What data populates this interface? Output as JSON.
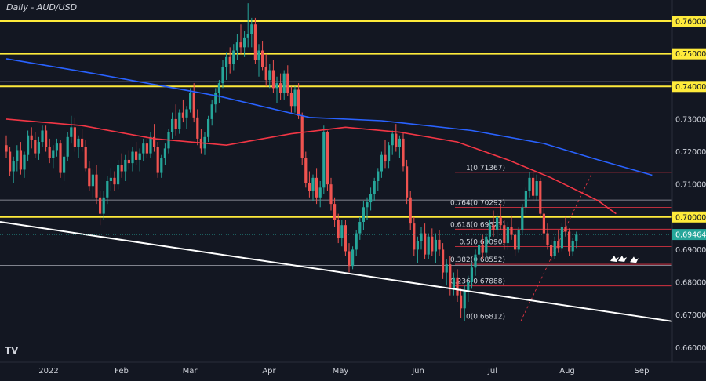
{
  "chart_data": {
    "type": "candlestick",
    "title": "Daily - AUD/USD",
    "xlabel": "",
    "ylabel": "",
    "ylim": [
      0.6555,
      0.7665
    ],
    "x_tick_labels": [
      "2022",
      "Feb",
      "Mar",
      "Apr",
      "May",
      "Jun",
      "Jul",
      "Aug",
      "Sep"
    ],
    "y_ticks": [
      0.66,
      0.67,
      0.68,
      0.69,
      0.7,
      0.71,
      0.72,
      0.73,
      0.74,
      0.75,
      0.76
    ],
    "y_tick_labels": [
      "0.66000",
      "0.67000",
      "0.68000",
      "0.69000",
      "0.70000",
      "0.71000",
      "0.72000",
      "0.73000",
      "0.74000",
      "0.75000",
      "0.76000"
    ],
    "grid": false,
    "last_price": 0.69464,
    "last_price_label": "0.69464",
    "yellow_levels": [
      0.76,
      0.75,
      0.74,
      0.7
    ],
    "yellow_level_labels": [
      "0.76000",
      "0.75000",
      "0.74000",
      "0.70000"
    ],
    "fibonacci": [
      {
        "label": "1(0.71367)",
        "value": 0.71367
      },
      {
        "label": "0.764(0.70292)",
        "value": 0.70292
      },
      {
        "label": "0.618(0.69627)",
        "value": 0.69627
      },
      {
        "label": "0.5(0.69090)",
        "value": 0.6909
      },
      {
        "label": "0.382(0.68552)",
        "value": 0.68552
      },
      {
        "label": "0.236(0.67888)",
        "value": 0.67888
      },
      {
        "label": "0(0.66812)",
        "value": 0.66812
      }
    ],
    "moving_averages": [
      {
        "name": "",
        "color": "#2962ff",
        "points": [
          [
            1,
            0.7485
          ],
          [
            25,
            0.744
          ],
          [
            60,
            0.737
          ],
          [
            85,
            0.7305
          ],
          [
            105,
            0.7295
          ],
          [
            130,
            0.7265
          ],
          [
            150,
            0.7225
          ],
          [
            165,
            0.7175
          ],
          [
            180,
            0.7128
          ]
        ]
      },
      {
        "name": "",
        "color": "#f23645",
        "points": [
          [
            1,
            0.73
          ],
          [
            22,
            0.728
          ],
          [
            42,
            0.724
          ],
          [
            62,
            0.722
          ],
          [
            80,
            0.7255
          ],
          [
            95,
            0.7275
          ],
          [
            110,
            0.726
          ],
          [
            126,
            0.723
          ],
          [
            140,
            0.7175
          ],
          [
            152,
            0.712
          ],
          [
            165,
            0.705
          ],
          [
            170,
            0.701
          ]
        ]
      }
    ],
    "trendline": {
      "color": "#ffffff",
      "start": [
        1,
        0.6985
      ],
      "end": [
        180,
        0.669
      ]
    },
    "candles": [
      [
        0.722,
        0.725,
        0.718,
        0.72
      ],
      [
        0.72,
        0.7215,
        0.7125,
        0.714
      ],
      [
        0.714,
        0.7185,
        0.7105,
        0.717
      ],
      [
        0.717,
        0.722,
        0.714,
        0.7205
      ],
      [
        0.7205,
        0.723,
        0.713,
        0.7145
      ],
      [
        0.7145,
        0.72,
        0.712,
        0.719
      ],
      [
        0.719,
        0.7265,
        0.717,
        0.725
      ],
      [
        0.725,
        0.7275,
        0.721,
        0.7235
      ],
      [
        0.7235,
        0.726,
        0.718,
        0.7195
      ],
      [
        0.7195,
        0.7245,
        0.7175,
        0.723
      ],
      [
        0.723,
        0.728,
        0.7215,
        0.7265
      ],
      [
        0.7265,
        0.728,
        0.72,
        0.7215
      ],
      [
        0.7215,
        0.724,
        0.7165,
        0.718
      ],
      [
        0.718,
        0.722,
        0.715,
        0.7205
      ],
      [
        0.7205,
        0.724,
        0.7185,
        0.7225
      ],
      [
        0.7225,
        0.7235,
        0.712,
        0.7135
      ],
      [
        0.7135,
        0.7195,
        0.711,
        0.7185
      ],
      [
        0.7185,
        0.726,
        0.717,
        0.7245
      ],
      [
        0.7245,
        0.731,
        0.7225,
        0.7275
      ],
      [
        0.7275,
        0.7305,
        0.72,
        0.7215
      ],
      [
        0.7215,
        0.725,
        0.718,
        0.724
      ],
      [
        0.724,
        0.727,
        0.72,
        0.7215
      ],
      [
        0.7215,
        0.7235,
        0.714,
        0.715
      ],
      [
        0.715,
        0.717,
        0.708,
        0.7095
      ],
      [
        0.7095,
        0.7145,
        0.706,
        0.713
      ],
      [
        0.713,
        0.716,
        0.704,
        0.706
      ],
      [
        0.706,
        0.708,
        0.6975,
        0.701
      ],
      [
        0.701,
        0.708,
        0.699,
        0.706
      ],
      [
        0.706,
        0.7125,
        0.704,
        0.711
      ],
      [
        0.711,
        0.715,
        0.708,
        0.712
      ],
      [
        0.712,
        0.714,
        0.708,
        0.71
      ],
      [
        0.71,
        0.7175,
        0.7085,
        0.716
      ],
      [
        0.716,
        0.7195,
        0.712,
        0.714
      ],
      [
        0.714,
        0.719,
        0.711,
        0.7175
      ],
      [
        0.7175,
        0.7205,
        0.7145,
        0.7165
      ],
      [
        0.7165,
        0.7215,
        0.714,
        0.72
      ],
      [
        0.72,
        0.723,
        0.716,
        0.7175
      ],
      [
        0.7175,
        0.721,
        0.714,
        0.7195
      ],
      [
        0.7195,
        0.724,
        0.717,
        0.7225
      ],
      [
        0.7225,
        0.725,
        0.718,
        0.7195
      ],
      [
        0.7195,
        0.726,
        0.718,
        0.7245
      ],
      [
        0.7245,
        0.7285,
        0.72,
        0.7215
      ],
      [
        0.7215,
        0.723,
        0.712,
        0.7135
      ],
      [
        0.7135,
        0.719,
        0.712,
        0.718
      ],
      [
        0.718,
        0.7225,
        0.716,
        0.721
      ],
      [
        0.721,
        0.727,
        0.7195,
        0.726
      ],
      [
        0.726,
        0.732,
        0.724,
        0.73
      ],
      [
        0.73,
        0.7345,
        0.725,
        0.727
      ],
      [
        0.727,
        0.733,
        0.7255,
        0.732
      ],
      [
        0.732,
        0.736,
        0.729,
        0.7305
      ],
      [
        0.7305,
        0.734,
        0.727,
        0.733
      ],
      [
        0.733,
        0.7395,
        0.732,
        0.738
      ],
      [
        0.738,
        0.741,
        0.729,
        0.7305
      ],
      [
        0.7305,
        0.733,
        0.722,
        0.724
      ],
      [
        0.724,
        0.727,
        0.7195,
        0.721
      ],
      [
        0.721,
        0.726,
        0.719,
        0.7245
      ],
      [
        0.7245,
        0.731,
        0.723,
        0.73
      ],
      [
        0.73,
        0.736,
        0.728,
        0.7345
      ],
      [
        0.7345,
        0.7395,
        0.732,
        0.738
      ],
      [
        0.738,
        0.742,
        0.735,
        0.741
      ],
      [
        0.741,
        0.748,
        0.7395,
        0.746
      ],
      [
        0.746,
        0.7505,
        0.742,
        0.749
      ],
      [
        0.749,
        0.752,
        0.744,
        0.747
      ],
      [
        0.747,
        0.753,
        0.745,
        0.751
      ],
      [
        0.751,
        0.756,
        0.748,
        0.7535
      ],
      [
        0.7535,
        0.759,
        0.75,
        0.752
      ],
      [
        0.752,
        0.757,
        0.749,
        0.755
      ],
      [
        0.755,
        0.7655,
        0.752,
        0.756
      ],
      [
        0.756,
        0.761,
        0.752,
        0.759
      ],
      [
        0.759,
        0.761,
        0.747,
        0.748
      ],
      [
        0.748,
        0.753,
        0.743,
        0.751
      ],
      [
        0.751,
        0.754,
        0.745,
        0.746
      ],
      [
        0.746,
        0.75,
        0.74,
        0.742
      ],
      [
        0.742,
        0.747,
        0.7395,
        0.745
      ],
      [
        0.745,
        0.748,
        0.738,
        0.7395
      ],
      [
        0.7395,
        0.743,
        0.735,
        0.741
      ],
      [
        0.741,
        0.744,
        0.736,
        0.738
      ],
      [
        0.738,
        0.745,
        0.736,
        0.744
      ],
      [
        0.744,
        0.7465,
        0.737,
        0.738
      ],
      [
        0.738,
        0.74,
        0.732,
        0.734
      ],
      [
        0.734,
        0.74,
        0.732,
        0.739
      ],
      [
        0.739,
        0.741,
        0.73,
        0.731
      ],
      [
        0.731,
        0.732,
        0.716,
        0.718
      ],
      [
        0.718,
        0.72,
        0.709,
        0.7105
      ],
      [
        0.7105,
        0.714,
        0.706,
        0.708
      ],
      [
        0.708,
        0.713,
        0.705,
        0.712
      ],
      [
        0.712,
        0.715,
        0.704,
        0.706
      ],
      [
        0.706,
        0.711,
        0.703,
        0.709
      ],
      [
        0.709,
        0.728,
        0.707,
        0.726
      ],
      [
        0.726,
        0.7265,
        0.708,
        0.71
      ],
      [
        0.71,
        0.712,
        0.702,
        0.704
      ],
      [
        0.704,
        0.706,
        0.697,
        0.699
      ],
      [
        0.699,
        0.701,
        0.692,
        0.6935
      ],
      [
        0.6935,
        0.699,
        0.691,
        0.6975
      ],
      [
        0.6975,
        0.699,
        0.688,
        0.6895
      ],
      [
        0.6895,
        0.692,
        0.683,
        0.685
      ],
      [
        0.685,
        0.691,
        0.684,
        0.69
      ],
      [
        0.69,
        0.696,
        0.688,
        0.695
      ],
      [
        0.695,
        0.7,
        0.693,
        0.6985
      ],
      [
        0.6985,
        0.705,
        0.696,
        0.703
      ],
      [
        0.703,
        0.706,
        0.699,
        0.7045
      ],
      [
        0.7045,
        0.709,
        0.702,
        0.707
      ],
      [
        0.707,
        0.712,
        0.705,
        0.711
      ],
      [
        0.711,
        0.715,
        0.708,
        0.714
      ],
      [
        0.714,
        0.72,
        0.712,
        0.719
      ],
      [
        0.719,
        0.7235,
        0.715,
        0.717
      ],
      [
        0.717,
        0.723,
        0.715,
        0.722
      ],
      [
        0.722,
        0.7265,
        0.719,
        0.7255
      ],
      [
        0.7255,
        0.7285,
        0.72,
        0.7215
      ],
      [
        0.7215,
        0.725,
        0.718,
        0.724
      ],
      [
        0.724,
        0.726,
        0.714,
        0.7155
      ],
      [
        0.7155,
        0.7175,
        0.704,
        0.706
      ],
      [
        0.706,
        0.708,
        0.696,
        0.698
      ],
      [
        0.698,
        0.7,
        0.688,
        0.69
      ],
      [
        0.69,
        0.694,
        0.686,
        0.6925
      ],
      [
        0.6925,
        0.697,
        0.69,
        0.695
      ],
      [
        0.695,
        0.698,
        0.687,
        0.6885
      ],
      [
        0.6885,
        0.695,
        0.687,
        0.694
      ],
      [
        0.694,
        0.6965,
        0.688,
        0.6895
      ],
      [
        0.6895,
        0.695,
        0.686,
        0.693
      ],
      [
        0.693,
        0.696,
        0.688,
        0.69
      ],
      [
        0.69,
        0.692,
        0.681,
        0.683
      ],
      [
        0.683,
        0.687,
        0.679,
        0.6855
      ],
      [
        0.6855,
        0.688,
        0.676,
        0.678
      ],
      [
        0.678,
        0.683,
        0.676,
        0.6815
      ],
      [
        0.6815,
        0.684,
        0.674,
        0.676
      ],
      [
        0.676,
        0.678,
        0.669,
        0.672
      ],
      [
        0.672,
        0.679,
        0.6681,
        0.6775
      ],
      [
        0.6775,
        0.682,
        0.674,
        0.68
      ],
      [
        0.68,
        0.686,
        0.678,
        0.6845
      ],
      [
        0.6845,
        0.69,
        0.682,
        0.6885
      ],
      [
        0.6885,
        0.693,
        0.686,
        0.6915
      ],
      [
        0.6915,
        0.6945,
        0.687,
        0.689
      ],
      [
        0.689,
        0.695,
        0.6875,
        0.694
      ],
      [
        0.694,
        0.699,
        0.692,
        0.6975
      ],
      [
        0.6975,
        0.702,
        0.694,
        0.696
      ],
      [
        0.696,
        0.701,
        0.6935,
        0.7
      ],
      [
        0.7,
        0.704,
        0.696,
        0.6975
      ],
      [
        0.6975,
        0.699,
        0.69,
        0.692
      ],
      [
        0.692,
        0.6985,
        0.69,
        0.697
      ],
      [
        0.697,
        0.7005,
        0.693,
        0.6945
      ],
      [
        0.6945,
        0.696,
        0.688,
        0.69
      ],
      [
        0.69,
        0.697,
        0.689,
        0.696
      ],
      [
        0.696,
        0.704,
        0.695,
        0.703
      ],
      [
        0.703,
        0.709,
        0.701,
        0.708
      ],
      [
        0.708,
        0.7137,
        0.706,
        0.712
      ],
      [
        0.712,
        0.7135,
        0.705,
        0.7065
      ],
      [
        0.7065,
        0.713,
        0.705,
        0.711
      ],
      [
        0.711,
        0.712,
        0.7,
        0.701
      ],
      [
        0.701,
        0.703,
        0.693,
        0.695
      ],
      [
        0.695,
        0.698,
        0.69,
        0.6915
      ],
      [
        0.6915,
        0.693,
        0.6865,
        0.688
      ],
      [
        0.688,
        0.694,
        0.687,
        0.6925
      ],
      [
        0.6925,
        0.696,
        0.689,
        0.6905
      ],
      [
        0.6905,
        0.698,
        0.6895,
        0.697
      ],
      [
        0.697,
        0.7,
        0.694,
        0.6955
      ],
      [
        0.6955,
        0.6965,
        0.688,
        0.6895
      ],
      [
        0.6895,
        0.6935,
        0.688,
        0.6925
      ],
      [
        0.6925,
        0.6955,
        0.6905,
        0.6946
      ]
    ]
  }
}
